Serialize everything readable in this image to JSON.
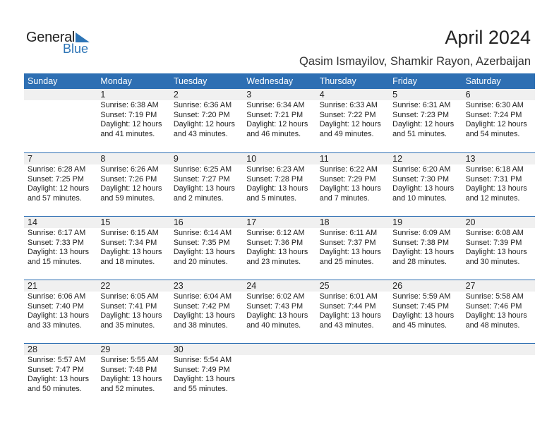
{
  "logo": {
    "text_general": "General",
    "text_blue": "Blue"
  },
  "header": {
    "title": "April 2024",
    "subtitle": "Qasim Ismayilov, Shamkir Rayon, Azerbaijan"
  },
  "colors": {
    "accent": "#2e6fb3",
    "band": "#f0f0f0"
  },
  "weekdays": [
    "Sunday",
    "Monday",
    "Tuesday",
    "Wednesday",
    "Thursday",
    "Friday",
    "Saturday"
  ],
  "weeks": [
    [
      null,
      {
        "day": "1",
        "sunrise": "Sunrise: 6:38 AM",
        "sunset": "Sunset: 7:19 PM",
        "daylight1": "Daylight: 12 hours",
        "daylight2": "and 41 minutes."
      },
      {
        "day": "2",
        "sunrise": "Sunrise: 6:36 AM",
        "sunset": "Sunset: 7:20 PM",
        "daylight1": "Daylight: 12 hours",
        "daylight2": "and 43 minutes."
      },
      {
        "day": "3",
        "sunrise": "Sunrise: 6:34 AM",
        "sunset": "Sunset: 7:21 PM",
        "daylight1": "Daylight: 12 hours",
        "daylight2": "and 46 minutes."
      },
      {
        "day": "4",
        "sunrise": "Sunrise: 6:33 AM",
        "sunset": "Sunset: 7:22 PM",
        "daylight1": "Daylight: 12 hours",
        "daylight2": "and 49 minutes."
      },
      {
        "day": "5",
        "sunrise": "Sunrise: 6:31 AM",
        "sunset": "Sunset: 7:23 PM",
        "daylight1": "Daylight: 12 hours",
        "daylight2": "and 51 minutes."
      },
      {
        "day": "6",
        "sunrise": "Sunrise: 6:30 AM",
        "sunset": "Sunset: 7:24 PM",
        "daylight1": "Daylight: 12 hours",
        "daylight2": "and 54 minutes."
      }
    ],
    [
      {
        "day": "7",
        "sunrise": "Sunrise: 6:28 AM",
        "sunset": "Sunset: 7:25 PM",
        "daylight1": "Daylight: 12 hours",
        "daylight2": "and 57 minutes."
      },
      {
        "day": "8",
        "sunrise": "Sunrise: 6:26 AM",
        "sunset": "Sunset: 7:26 PM",
        "daylight1": "Daylight: 12 hours",
        "daylight2": "and 59 minutes."
      },
      {
        "day": "9",
        "sunrise": "Sunrise: 6:25 AM",
        "sunset": "Sunset: 7:27 PM",
        "daylight1": "Daylight: 13 hours",
        "daylight2": "and 2 minutes."
      },
      {
        "day": "10",
        "sunrise": "Sunrise: 6:23 AM",
        "sunset": "Sunset: 7:28 PM",
        "daylight1": "Daylight: 13 hours",
        "daylight2": "and 5 minutes."
      },
      {
        "day": "11",
        "sunrise": "Sunrise: 6:22 AM",
        "sunset": "Sunset: 7:29 PM",
        "daylight1": "Daylight: 13 hours",
        "daylight2": "and 7 minutes."
      },
      {
        "day": "12",
        "sunrise": "Sunrise: 6:20 AM",
        "sunset": "Sunset: 7:30 PM",
        "daylight1": "Daylight: 13 hours",
        "daylight2": "and 10 minutes."
      },
      {
        "day": "13",
        "sunrise": "Sunrise: 6:18 AM",
        "sunset": "Sunset: 7:31 PM",
        "daylight1": "Daylight: 13 hours",
        "daylight2": "and 12 minutes."
      }
    ],
    [
      {
        "day": "14",
        "sunrise": "Sunrise: 6:17 AM",
        "sunset": "Sunset: 7:33 PM",
        "daylight1": "Daylight: 13 hours",
        "daylight2": "and 15 minutes."
      },
      {
        "day": "15",
        "sunrise": "Sunrise: 6:15 AM",
        "sunset": "Sunset: 7:34 PM",
        "daylight1": "Daylight: 13 hours",
        "daylight2": "and 18 minutes."
      },
      {
        "day": "16",
        "sunrise": "Sunrise: 6:14 AM",
        "sunset": "Sunset: 7:35 PM",
        "daylight1": "Daylight: 13 hours",
        "daylight2": "and 20 minutes."
      },
      {
        "day": "17",
        "sunrise": "Sunrise: 6:12 AM",
        "sunset": "Sunset: 7:36 PM",
        "daylight1": "Daylight: 13 hours",
        "daylight2": "and 23 minutes."
      },
      {
        "day": "18",
        "sunrise": "Sunrise: 6:11 AM",
        "sunset": "Sunset: 7:37 PM",
        "daylight1": "Daylight: 13 hours",
        "daylight2": "and 25 minutes."
      },
      {
        "day": "19",
        "sunrise": "Sunrise: 6:09 AM",
        "sunset": "Sunset: 7:38 PM",
        "daylight1": "Daylight: 13 hours",
        "daylight2": "and 28 minutes."
      },
      {
        "day": "20",
        "sunrise": "Sunrise: 6:08 AM",
        "sunset": "Sunset: 7:39 PM",
        "daylight1": "Daylight: 13 hours",
        "daylight2": "and 30 minutes."
      }
    ],
    [
      {
        "day": "21",
        "sunrise": "Sunrise: 6:06 AM",
        "sunset": "Sunset: 7:40 PM",
        "daylight1": "Daylight: 13 hours",
        "daylight2": "and 33 minutes."
      },
      {
        "day": "22",
        "sunrise": "Sunrise: 6:05 AM",
        "sunset": "Sunset: 7:41 PM",
        "daylight1": "Daylight: 13 hours",
        "daylight2": "and 35 minutes."
      },
      {
        "day": "23",
        "sunrise": "Sunrise: 6:04 AM",
        "sunset": "Sunset: 7:42 PM",
        "daylight1": "Daylight: 13 hours",
        "daylight2": "and 38 minutes."
      },
      {
        "day": "24",
        "sunrise": "Sunrise: 6:02 AM",
        "sunset": "Sunset: 7:43 PM",
        "daylight1": "Daylight: 13 hours",
        "daylight2": "and 40 minutes."
      },
      {
        "day": "25",
        "sunrise": "Sunrise: 6:01 AM",
        "sunset": "Sunset: 7:44 PM",
        "daylight1": "Daylight: 13 hours",
        "daylight2": "and 43 minutes."
      },
      {
        "day": "26",
        "sunrise": "Sunrise: 5:59 AM",
        "sunset": "Sunset: 7:45 PM",
        "daylight1": "Daylight: 13 hours",
        "daylight2": "and 45 minutes."
      },
      {
        "day": "27",
        "sunrise": "Sunrise: 5:58 AM",
        "sunset": "Sunset: 7:46 PM",
        "daylight1": "Daylight: 13 hours",
        "daylight2": "and 48 minutes."
      }
    ],
    [
      {
        "day": "28",
        "sunrise": "Sunrise: 5:57 AM",
        "sunset": "Sunset: 7:47 PM",
        "daylight1": "Daylight: 13 hours",
        "daylight2": "and 50 minutes."
      },
      {
        "day": "29",
        "sunrise": "Sunrise: 5:55 AM",
        "sunset": "Sunset: 7:48 PM",
        "daylight1": "Daylight: 13 hours",
        "daylight2": "and 52 minutes."
      },
      {
        "day": "30",
        "sunrise": "Sunrise: 5:54 AM",
        "sunset": "Sunset: 7:49 PM",
        "daylight1": "Daylight: 13 hours",
        "daylight2": "and 55 minutes."
      },
      null,
      null,
      null,
      null
    ]
  ]
}
